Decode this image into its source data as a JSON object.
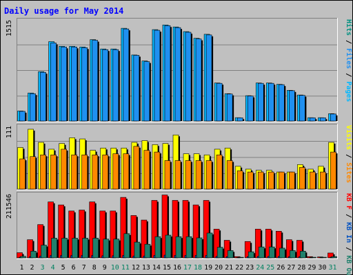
{
  "colors": {
    "frame_bg": "#c0c0c0",
    "title": "#0000ff",
    "grid": "#808080",
    "pages": "#00b8ff",
    "files": "#2090f0",
    "hits": "#009080",
    "visits": "#ffff00",
    "sites": "#ff8800",
    "kb_in": "#0050c0",
    "kb_out": "#20806c",
    "kb_f": "#ff0000",
    "weekday_label": "#000000",
    "weekend_label": "#008060"
  },
  "chart_data": {
    "title": "Daily usage for May 2014",
    "type": "bar",
    "days": [
      "1",
      "2",
      "3",
      "4",
      "5",
      "6",
      "7",
      "8",
      "9",
      "10",
      "11",
      "12",
      "13",
      "14",
      "15",
      "16",
      "17",
      "18",
      "19",
      "20",
      "21",
      "22",
      "23",
      "24",
      "25",
      "26",
      "27",
      "28",
      "29",
      "30",
      "31"
    ],
    "weekend_days": [
      "3",
      "4",
      "10",
      "11",
      "17",
      "18",
      "24",
      "25",
      "31"
    ],
    "panels": [
      {
        "key": "top",
        "ymax_label": "1515",
        "ymax": 1515,
        "gridlines": 3,
        "legend": [
          {
            "text": "Hits",
            "color_key": "hits"
          },
          {
            "text": " / ",
            "color_key": null
          },
          {
            "text": "Files",
            "color_key": "files"
          },
          {
            "text": " / ",
            "color_key": null
          },
          {
            "text": "Pages",
            "color_key": "pages"
          }
        ],
        "series": [
          {
            "name": "Pages",
            "color_key": "pages",
            "values": [
              150,
              420,
              740,
              1190,
              1120,
              1120,
              1110,
              1220,
              1080,
              1080,
              1390,
              990,
              900,
              1370,
              1440,
              1410,
              1340,
              1240,
              1300,
              570,
              410,
              50,
              380,
              570,
              570,
              550,
              460,
              390,
              50,
              50,
              110
            ]
          },
          {
            "name": "Files",
            "color_key": "files",
            "values": [
              145,
              410,
              730,
              1170,
              1110,
              1110,
              1100,
              1210,
              1070,
              1070,
              1380,
              985,
              890,
              1360,
              1430,
              1400,
              1330,
              1230,
              1290,
              565,
              405,
              48,
              375,
              565,
              565,
              545,
              455,
              385,
              48,
              48,
              105
            ]
          }
        ]
      },
      {
        "key": "middle",
        "ymax_label": "111",
        "ymax": 111,
        "gridlines": 3,
        "legend": [
          {
            "text": "Visits",
            "color_key": "visits"
          },
          {
            "text": " / ",
            "color_key": null
          },
          {
            "text": "Sites",
            "color_key": "sites"
          }
        ],
        "series": [
          {
            "name": "Visits",
            "color_key": "visits",
            "values": [
              73,
              105,
              82,
              70,
              80,
              90,
              88,
              68,
              72,
              72,
              72,
              82,
              85,
              78,
              80,
              95,
              62,
              62,
              60,
              70,
              72,
              40,
              35,
              33,
              33,
              30,
              30,
              43,
              35,
              40,
              82
            ]
          },
          {
            "name": "Sites",
            "color_key": "sites",
            "values": [
              53,
              57,
              60,
              60,
              70,
              60,
              60,
              60,
              60,
              62,
              62,
              75,
              68,
              65,
              50,
              50,
              50,
              50,
              50,
              60,
              50,
              32,
              30,
              30,
              30,
              30,
              30,
              38,
              30,
              30,
              65
            ]
          }
        ]
      },
      {
        "key": "bottom",
        "ymax_label": "211546",
        "ymax": 211546,
        "gridlines": 0,
        "legend": [
          {
            "text": "KB F",
            "color_key": "kb_f"
          },
          {
            "text": " / ",
            "color_key": null
          },
          {
            "text": "KB In",
            "color_key": "kb_in"
          },
          {
            "text": " / ",
            "color_key": null
          },
          {
            "text": "KB Out",
            "color_key": "kb_out"
          }
        ],
        "series": [
          {
            "name": "KB F",
            "color_key": "kb_f",
            "values": [
              17000,
              60000,
              110000,
              185000,
              175000,
              155000,
              158000,
              185000,
              155000,
              155000,
              200000,
              140000,
              125000,
              190000,
              208000,
              190000,
              190000,
              175000,
              190000,
              95000,
              58000,
              4000,
              54000,
              95000,
              95000,
              88000,
              60000,
              58000,
              4000,
              3000,
              16000
            ]
          },
          {
            "name": "KB In",
            "color_key": "kb_in",
            "values": [
              2000,
              4000,
              6000,
              8000,
              8000,
              8000,
              8000,
              8000,
              7000,
              7000,
              8000,
              6000,
              6000,
              8000,
              9000,
              8000,
              8000,
              8000,
              8000,
              5000,
              4000,
              1000,
              4000,
              5000,
              5000,
              5000,
              4000,
              4000,
              1000,
              1000,
              2000
            ]
          },
          {
            "name": "KB Out",
            "color_key": "kb_out",
            "values": [
              5000,
              22000,
              42000,
              65000,
              65000,
              65000,
              65000,
              65000,
              62000,
              62000,
              80000,
              52000,
              45000,
              70000,
              75000,
              70000,
              70000,
              66000,
              82000,
              35000,
              24000,
              2000,
              20000,
              36000,
              36000,
              32000,
              24000,
              22000,
              2000,
              2000,
              4000
            ]
          }
        ]
      }
    ]
  }
}
